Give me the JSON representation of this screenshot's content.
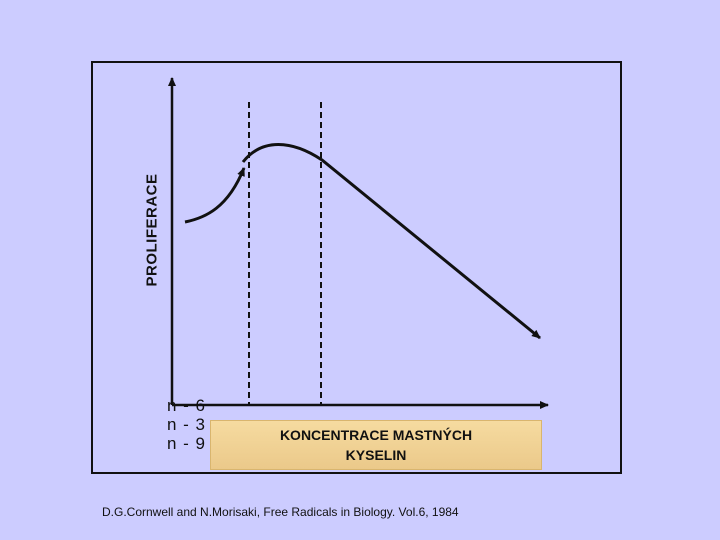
{
  "diagram": {
    "y_axis_label": "PROLIFERACE",
    "x_axis_label_line1": "KONCENTRACE  MASTNÝCH",
    "x_axis_label_line2": "KYSELIN",
    "tick_labels": [
      "n - 6",
      "n - 3",
      "n - 9"
    ],
    "citation": "D.G.Cornwell and  N.Morisaki, Free Radicals in Biology. Vol.6, 1984",
    "colors": {
      "background": "#ccccff",
      "line": "#111111",
      "label_box": "#f0d090"
    }
  }
}
